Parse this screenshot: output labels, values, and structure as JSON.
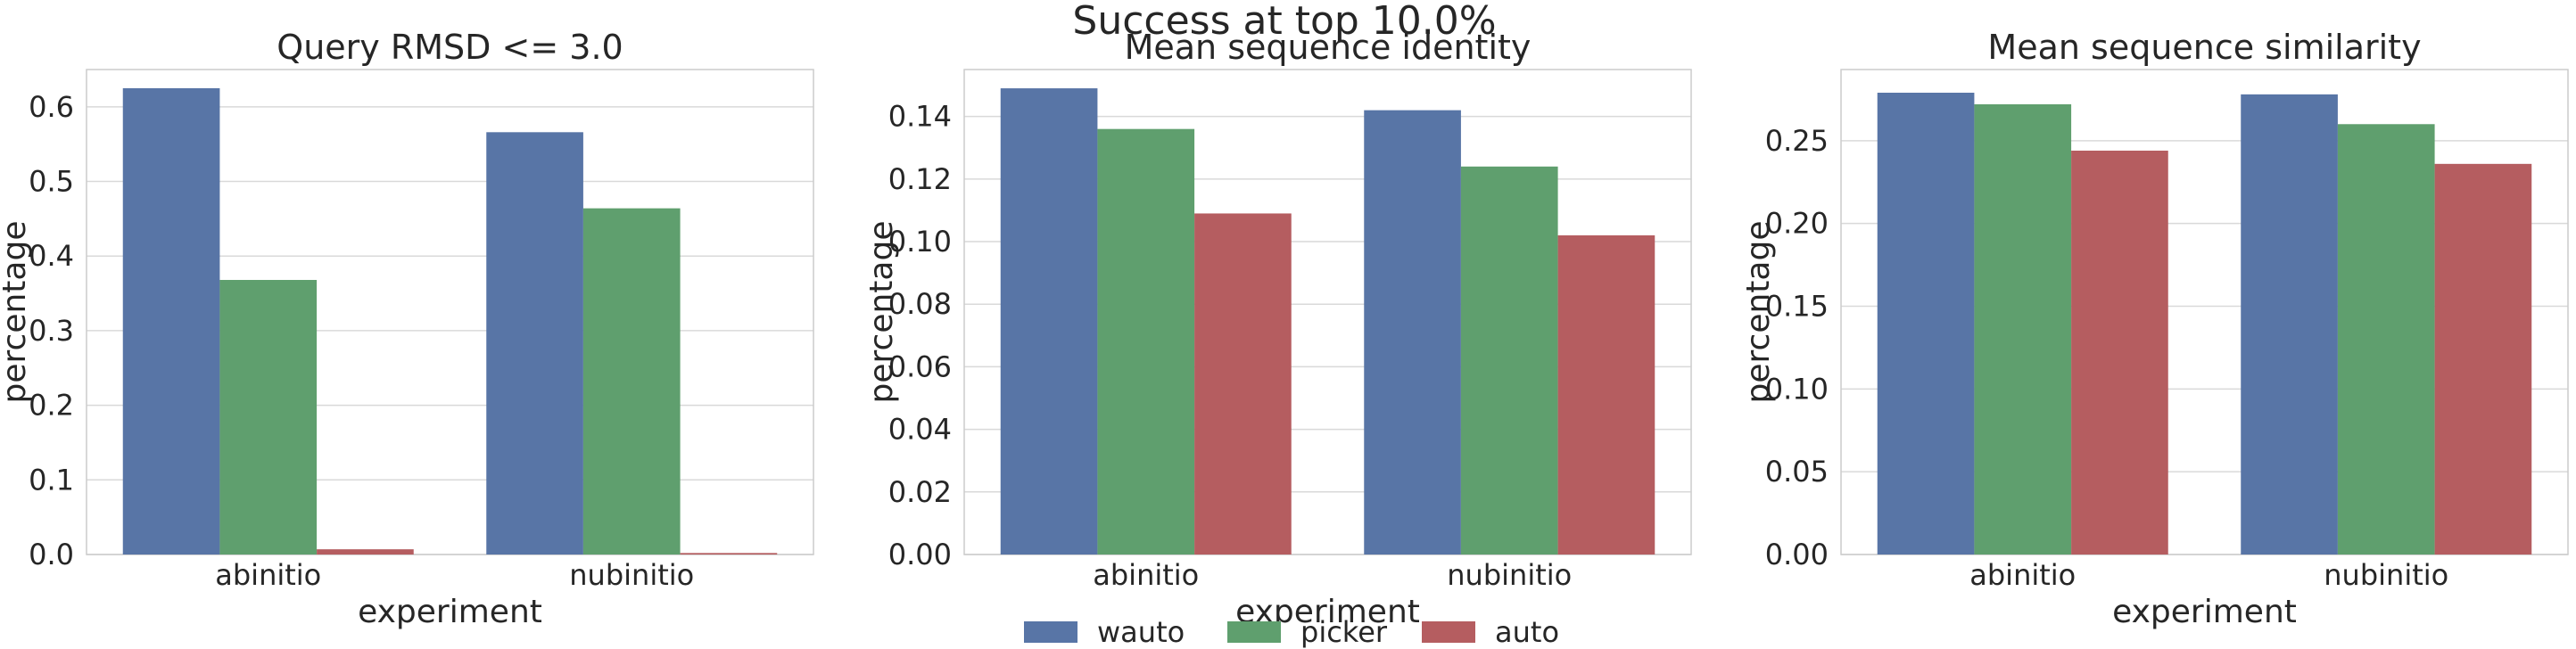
{
  "suptitle": "Success at top 10.0%",
  "colors": {
    "wauto": "#5875a6",
    "picker": "#5f9f6e",
    "auto": "#b55d60",
    "grid": "#d9d9d9",
    "frame": "#cccccc",
    "text": "#262626"
  },
  "legend": {
    "placement": "bottom-center",
    "entries": [
      {
        "name": "wauto",
        "color": "#5875a6"
      },
      {
        "name": "picker",
        "color": "#5f9f6e"
      },
      {
        "name": "auto",
        "color": "#b55d60"
      }
    ]
  },
  "chart_data": [
    {
      "type": "bar",
      "title": "Query RMSD <= 3.0",
      "xlabel": "experiment",
      "ylabel": "percentage",
      "categories": [
        "abinitio",
        "nubinitio"
      ],
      "series": [
        {
          "name": "wauto",
          "values": [
            0.625,
            0.566
          ]
        },
        {
          "name": "picker",
          "values": [
            0.368,
            0.464
          ]
        },
        {
          "name": "auto",
          "values": [
            0.007,
            0.002
          ]
        }
      ],
      "ylim": [
        0,
        0.65
      ],
      "yticks": [
        0.0,
        0.1,
        0.2,
        0.3,
        0.4,
        0.5,
        0.6
      ],
      "ytick_labels": [
        "0.0",
        "0.1",
        "0.2",
        "0.3",
        "0.4",
        "0.5",
        "0.6"
      ],
      "grid": true
    },
    {
      "type": "bar",
      "title": "Mean sequence identity",
      "xlabel": "experiment",
      "ylabel": "percentage",
      "categories": [
        "abinitio",
        "nubinitio"
      ],
      "series": [
        {
          "name": "wauto",
          "values": [
            0.149,
            0.142
          ]
        },
        {
          "name": "picker",
          "values": [
            0.136,
            0.124
          ]
        },
        {
          "name": "auto",
          "values": [
            0.109,
            0.102
          ]
        }
      ],
      "ylim": [
        0,
        0.155
      ],
      "yticks": [
        0.0,
        0.02,
        0.04,
        0.06,
        0.08,
        0.1,
        0.12,
        0.14
      ],
      "ytick_labels": [
        "0.00",
        "0.02",
        "0.04",
        "0.06",
        "0.08",
        "0.10",
        "0.12",
        "0.14"
      ],
      "grid": true
    },
    {
      "type": "bar",
      "title": "Mean sequence similarity",
      "xlabel": "experiment",
      "ylabel": "percentage",
      "categories": [
        "abinitio",
        "nubinitio"
      ],
      "series": [
        {
          "name": "wauto",
          "values": [
            0.279,
            0.278
          ]
        },
        {
          "name": "picker",
          "values": [
            0.272,
            0.26
          ]
        },
        {
          "name": "auto",
          "values": [
            0.244,
            0.236
          ]
        }
      ],
      "ylim": [
        0,
        0.293
      ],
      "yticks": [
        0.0,
        0.05,
        0.1,
        0.15,
        0.2,
        0.25
      ],
      "ytick_labels": [
        "0.00",
        "0.05",
        "0.10",
        "0.15",
        "0.20",
        "0.25"
      ],
      "grid": true
    }
  ]
}
